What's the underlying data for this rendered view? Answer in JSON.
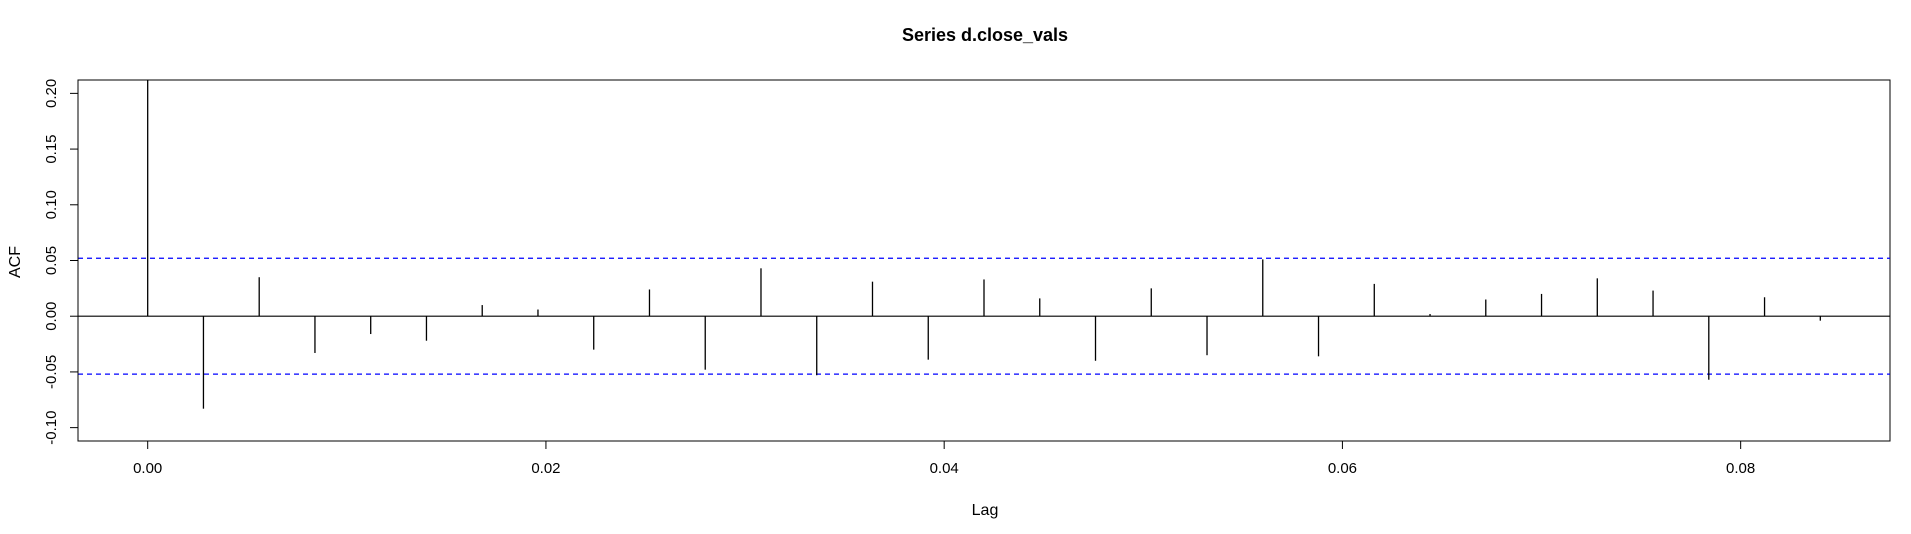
{
  "chart_data": {
    "type": "bar",
    "title": "Series  d.close_vals",
    "xlabel": "Lag",
    "ylabel": "ACF",
    "xlim": [
      -0.0035,
      0.0875
    ],
    "ylim": [
      -0.112,
      0.212
    ],
    "x_ticks": [
      0.0,
      0.02,
      0.04,
      0.06,
      0.08
    ],
    "x_tick_labels": [
      "0.00",
      "0.02",
      "0.04",
      "0.06",
      "0.08"
    ],
    "y_ticks": [
      -0.1,
      -0.05,
      0.0,
      0.05,
      0.1,
      0.15,
      0.2
    ],
    "y_tick_labels": [
      "-0.10",
      "-0.05",
      "0.00",
      "0.05",
      "0.10",
      "0.15",
      "0.20"
    ],
    "confidence_bound": 0.052,
    "confidence_line_color": "#0000ff",
    "grid": false,
    "lags": [
      0.0,
      0.0028,
      0.0056,
      0.0084,
      0.0112,
      0.014,
      0.0168,
      0.0196,
      0.0224,
      0.0252,
      0.028,
      0.0308,
      0.0336,
      0.0364,
      0.0392,
      0.042,
      0.0448,
      0.0476,
      0.0504,
      0.0532,
      0.056,
      0.0588,
      0.0616,
      0.0644,
      0.0672,
      0.07,
      0.0728,
      0.0756,
      0.0784,
      0.0812,
      0.084
    ],
    "acf": [
      0.212,
      -0.083,
      0.035,
      -0.033,
      -0.016,
      -0.022,
      0.01,
      0.006,
      -0.03,
      0.024,
      -0.048,
      0.043,
      -0.053,
      0.031,
      -0.039,
      0.033,
      0.016,
      -0.04,
      0.025,
      -0.035,
      0.051,
      -0.036,
      0.029,
      0.002,
      0.015,
      0.02,
      0.034,
      0.023,
      -0.057,
      0.017,
      -0.004
    ]
  }
}
